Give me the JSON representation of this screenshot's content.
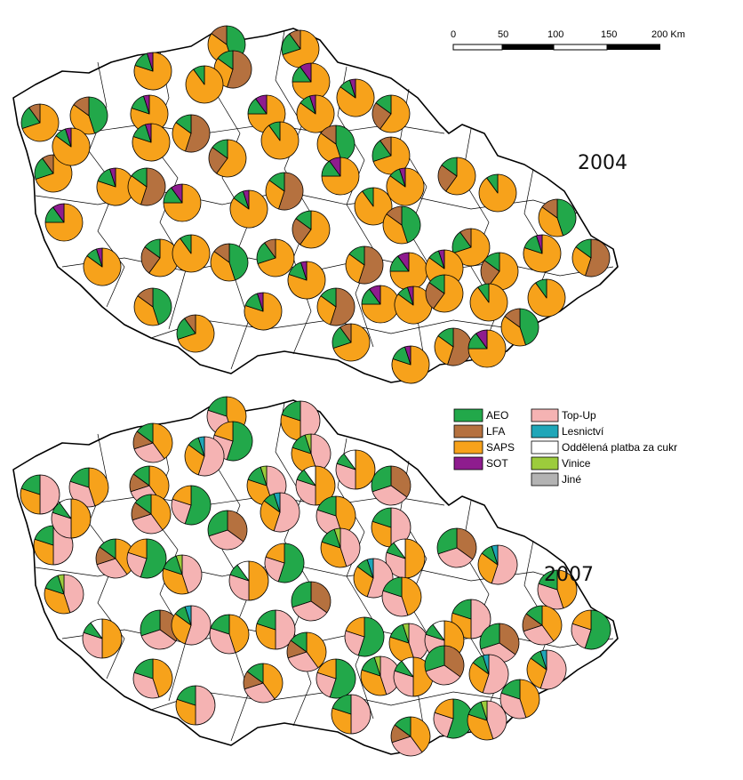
{
  "scale_bar": {
    "ticks": [
      "0",
      "50",
      "100",
      "150",
      "200 Km"
    ]
  },
  "maps": [
    {
      "year": "2004"
    },
    {
      "year": "2007"
    }
  ],
  "legend": {
    "left_column": [
      {
        "label": "AEO",
        "color": "#22a84a"
      },
      {
        "label": "LFA",
        "color": "#b5713f"
      },
      {
        "label": "SAPS",
        "color": "#f7a21b"
      },
      {
        "label": "SOT",
        "color": "#8e1c8e"
      }
    ],
    "right_column": [
      {
        "label": "Top-Up",
        "color": "#f5b3b3"
      },
      {
        "label": "Lesnictví",
        "color": "#1fa6b8"
      },
      {
        "label": "Oddělená platba za cukr",
        "color": "#ffffff"
      },
      {
        "label": "Vinice",
        "color": "#9ccc3c"
      },
      {
        "label": "Jiné",
        "color": "#b3b3b3"
      }
    ]
  }
}
